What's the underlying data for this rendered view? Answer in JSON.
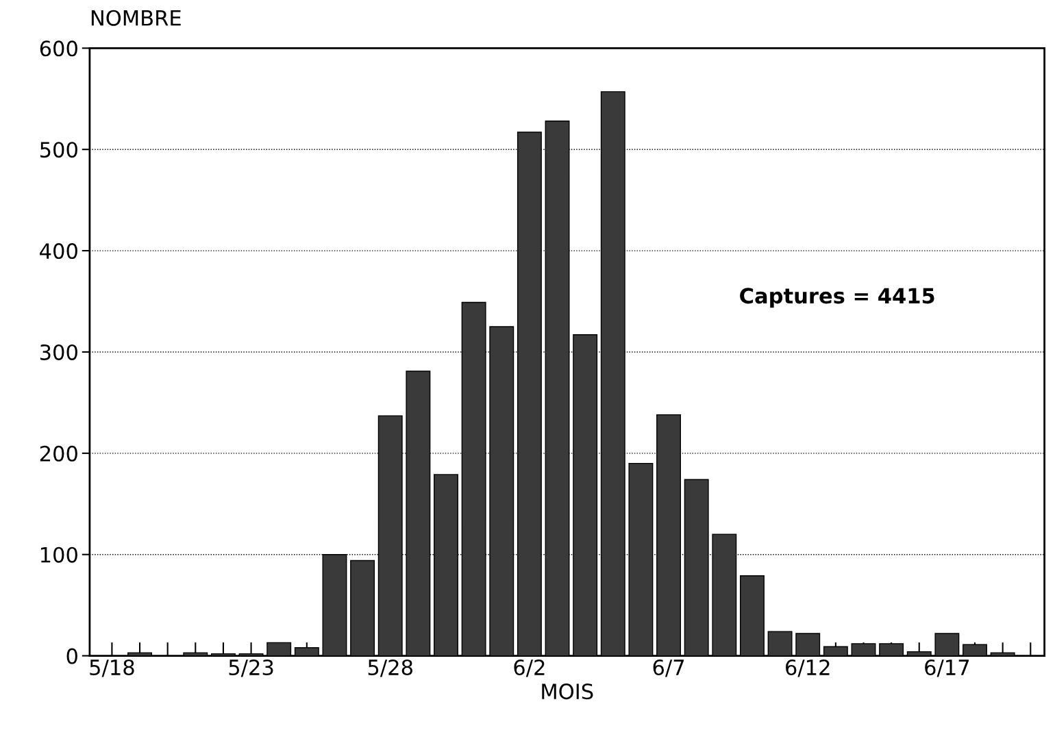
{
  "chart_data": {
    "type": "bar",
    "xlabel": "MOIS",
    "ylabel": "NOMBRE",
    "categories": [
      "5/18",
      null,
      null,
      null,
      null,
      "5/23",
      null,
      null,
      null,
      null,
      "5/28",
      null,
      null,
      null,
      null,
      "6/2",
      null,
      null,
      null,
      null,
      "6/7",
      null,
      null,
      null,
      null,
      "6/12",
      null,
      null,
      null,
      null,
      "6/17",
      null,
      null,
      null
    ],
    "values": [
      null,
      3,
      null,
      3,
      2,
      2,
      13,
      8,
      100,
      94,
      237,
      281,
      179,
      349,
      325,
      517,
      528,
      317,
      557,
      190,
      238,
      174,
      120,
      79,
      24,
      22,
      9,
      12,
      12,
      4,
      22,
      11,
      3,
      null
    ],
    "color": "#3a3a3a",
    "ylim": [
      0,
      600
    ],
    "yticks": [
      0,
      100,
      200,
      300,
      400,
      500,
      600
    ],
    "grid": "y",
    "line_style": "dotted",
    "annotations": [
      "Captures = 4415"
    ]
  }
}
